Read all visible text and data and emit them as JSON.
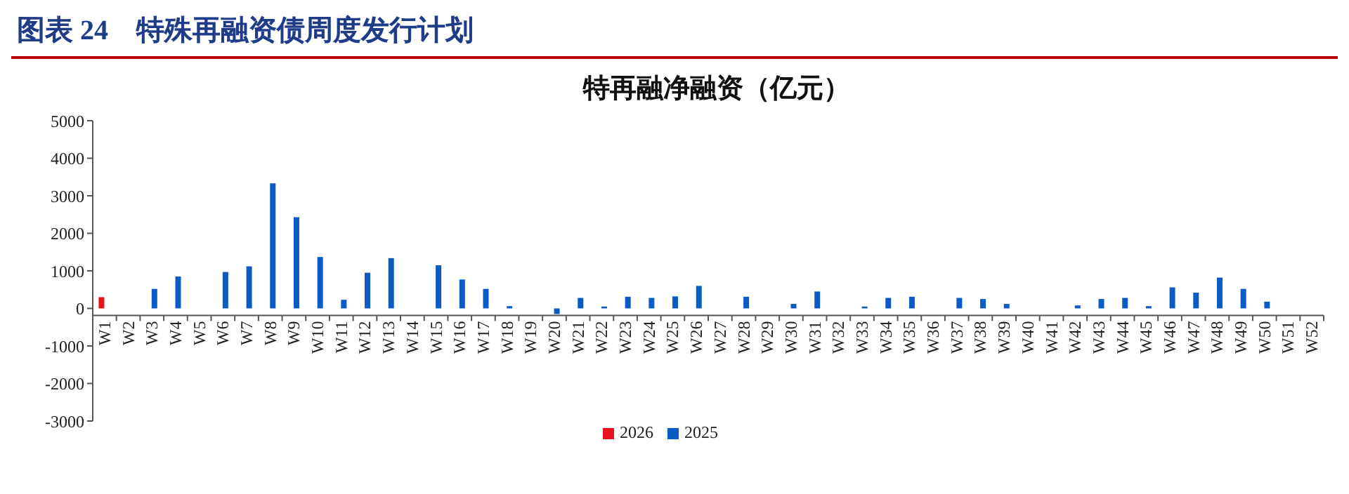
{
  "chart_data": {
    "type": "bar",
    "title": "图表 24　特殊再融资债周度发行计划",
    "subtitle": "特再融净融资（亿元）",
    "categories": [
      "W1",
      "W2",
      "W3",
      "W4",
      "W5",
      "W6",
      "W7",
      "W8",
      "W9",
      "W10",
      "W11",
      "W12",
      "W13",
      "W14",
      "W15",
      "W16",
      "W17",
      "W18",
      "W19",
      "W20",
      "W21",
      "W22",
      "W23",
      "W24",
      "W25",
      "W26",
      "W27",
      "W28",
      "W29",
      "W30",
      "W31",
      "W32",
      "W33",
      "W34",
      "W35",
      "W36",
      "W37",
      "W38",
      "W39",
      "W40",
      "W41",
      "W42",
      "W43",
      "W44",
      "W45",
      "W46",
      "W47",
      "W48",
      "W49",
      "W50",
      "W51",
      "W52"
    ],
    "series": [
      {
        "name": "2026",
        "color": "#e8141b",
        "values": [
          300,
          null,
          null,
          null,
          null,
          null,
          null,
          null,
          null,
          null,
          null,
          null,
          null,
          null,
          null,
          null,
          null,
          null,
          null,
          null,
          null,
          null,
          null,
          null,
          null,
          null,
          null,
          null,
          null,
          null,
          null,
          null,
          null,
          null,
          null,
          null,
          null,
          null,
          null,
          null,
          null,
          null,
          null,
          null,
          null,
          null,
          null,
          null,
          null,
          null,
          null,
          null
        ]
      },
      {
        "name": "2025",
        "color": "#0a5bc4",
        "values": [
          null,
          null,
          520,
          850,
          null,
          970,
          1120,
          3330,
          2430,
          1370,
          230,
          950,
          1340,
          null,
          1150,
          770,
          520,
          60,
          null,
          -150,
          280,
          50,
          310,
          280,
          320,
          600,
          null,
          310,
          null,
          120,
          450,
          null,
          50,
          280,
          310,
          null,
          280,
          250,
          120,
          null,
          null,
          80,
          250,
          280,
          60,
          560,
          420,
          820,
          520,
          180,
          null,
          null
        ]
      }
    ],
    "ylim": [
      -3000,
      5000
    ],
    "yticks": [
      -3000,
      -2000,
      -1000,
      0,
      1000,
      2000,
      3000,
      4000,
      5000
    ],
    "legend": "bottom"
  }
}
